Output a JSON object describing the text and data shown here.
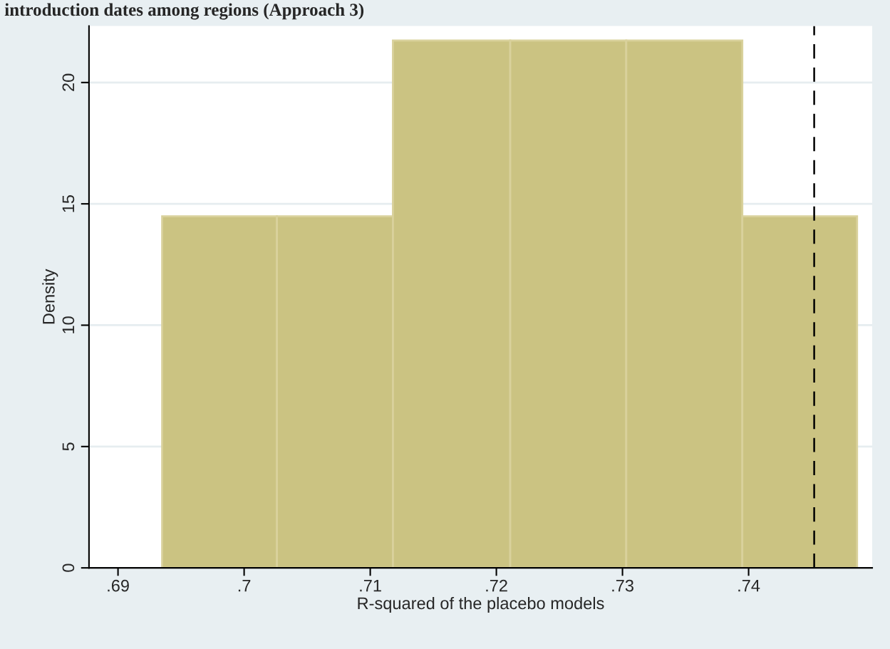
{
  "chart_data": {
    "type": "histogram",
    "title": "introduction dates among regions (Approach 3)",
    "xlabel": "R-squared of the placebo models",
    "ylabel": "Density",
    "bins": [
      0.6935,
      0.7026,
      0.7118,
      0.7211,
      0.7303,
      0.7395,
      0.7486
    ],
    "values": [
      14.49,
      14.49,
      21.73,
      21.73,
      21.73,
      14.49
    ],
    "color": "#cbc382",
    "xlim": [
      0.6877,
      0.7498
    ],
    "ylim": [
      0,
      22.33
    ],
    "xticks": [
      {
        "value": 0.69,
        "label": ".69"
      },
      {
        "value": 0.7,
        "label": ".7"
      },
      {
        "value": 0.71,
        "label": ".71"
      },
      {
        "value": 0.72,
        "label": ".72"
      },
      {
        "value": 0.73,
        "label": ".73"
      },
      {
        "value": 0.74,
        "label": ".74"
      }
    ],
    "yticks": [
      0,
      5,
      10,
      15,
      20
    ],
    "grid": "y",
    "ref_lines": [
      {
        "axis": "x",
        "value": 0.7452,
        "color": "#000000",
        "line_style": "dashed"
      }
    ]
  }
}
